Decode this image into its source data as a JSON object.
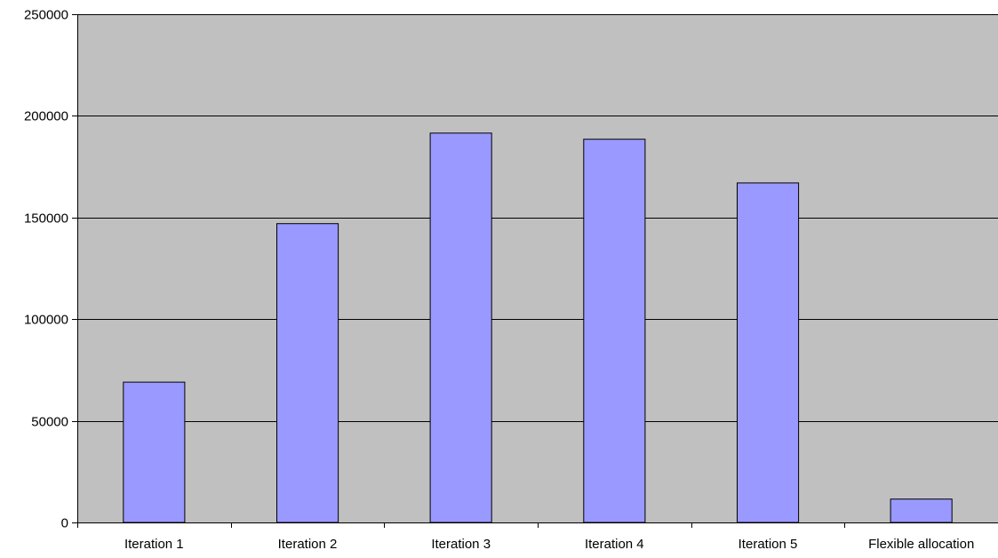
{
  "chart_data": {
    "type": "bar",
    "title": "",
    "xlabel": "",
    "ylabel": "",
    "categories": [
      "Iteration 1",
      "Iteration 2",
      "Iteration 3",
      "Iteration 4",
      "Iteration 5",
      "Flexible allocation"
    ],
    "values": [
      69000,
      147000,
      191500,
      188500,
      167000,
      11500
    ],
    "ylim": [
      0,
      250000
    ],
    "yticks": [
      "0",
      "50000",
      "100000",
      "150000",
      "200000",
      "250000"
    ],
    "grid": "horizontal",
    "legend": "none",
    "colors": {
      "plot_background": "#c0c0c0",
      "bar_fill": "#9999ff",
      "bar_stroke": "#000000",
      "grid": "#000000"
    }
  }
}
